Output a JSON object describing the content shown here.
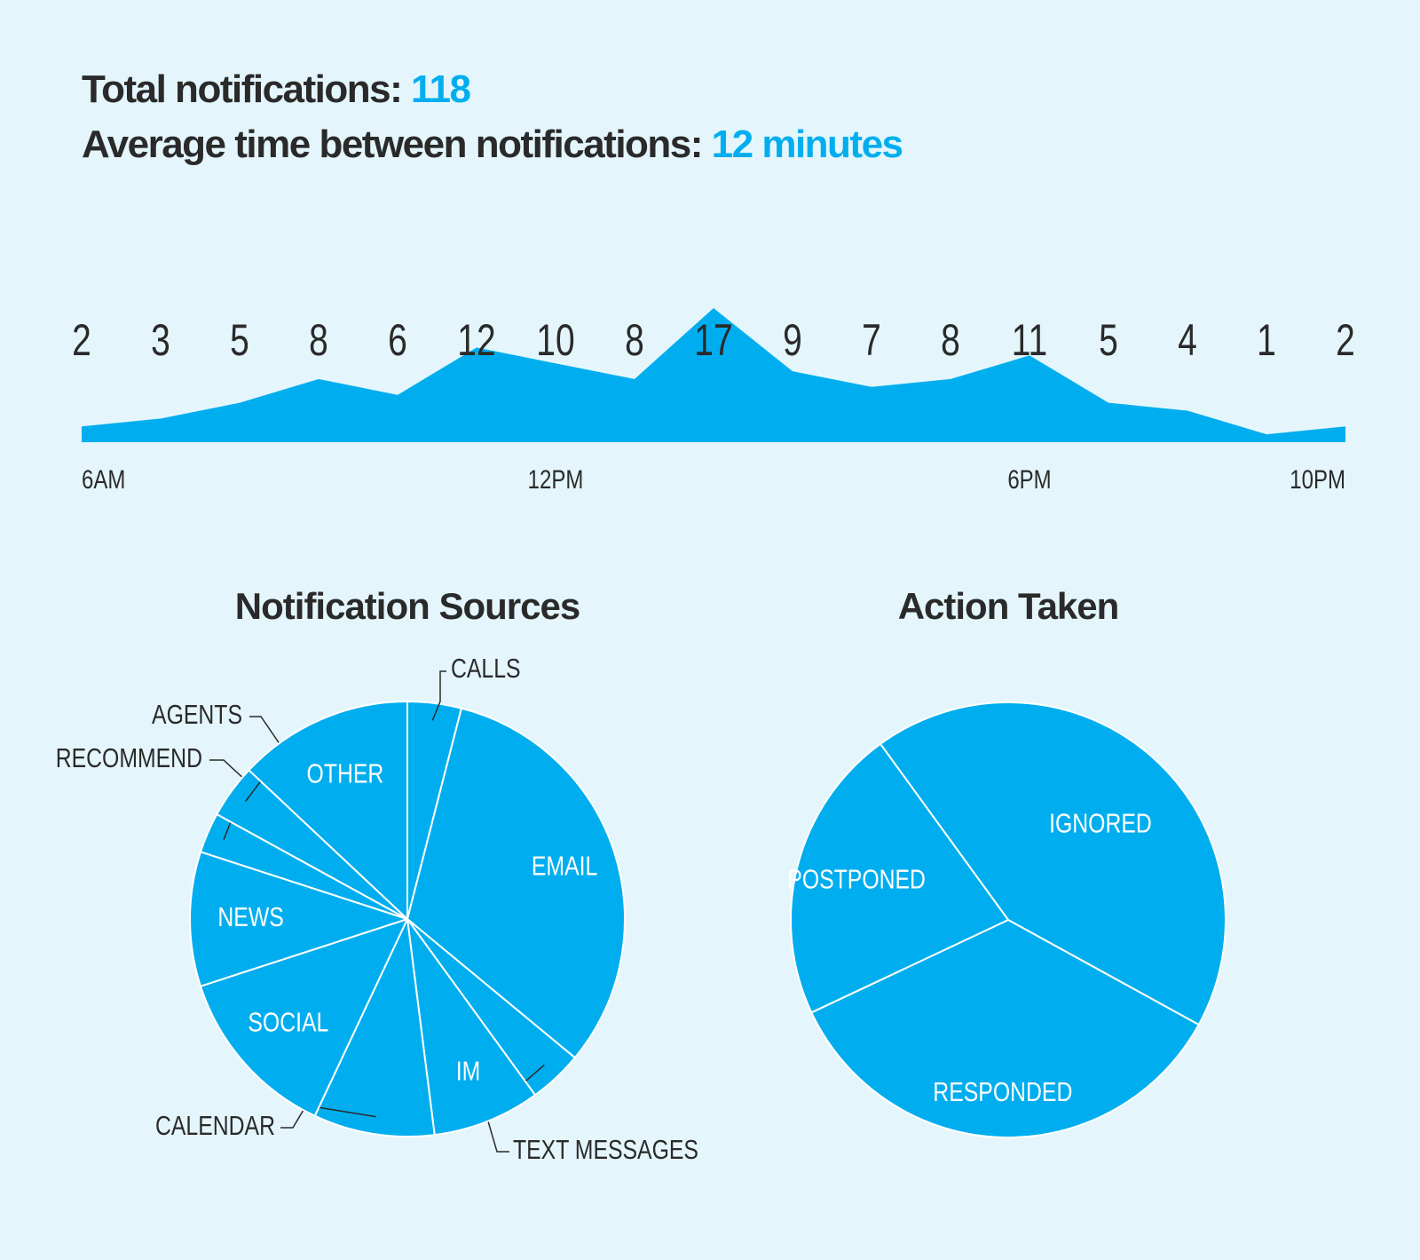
{
  "summary": {
    "total_label": "Total notifications:",
    "total_value": "118",
    "avg_label": "Average time between notifications:",
    "avg_value": "12 minutes"
  },
  "colors": {
    "background": "#e4f6fc",
    "accent": "#00aeef",
    "text": "#2a2a2a",
    "divider": "#ffffff"
  },
  "chart_data": [
    {
      "type": "area",
      "title": "",
      "x_tick_labels": [
        "6AM",
        "12PM",
        "6PM",
        "10PM"
      ],
      "values": [
        2,
        3,
        5,
        8,
        6,
        12,
        10,
        8,
        17,
        9,
        7,
        8,
        11,
        5,
        4,
        1,
        2
      ],
      "data_labels": [
        "2",
        "3",
        "5",
        "8",
        "6",
        "12",
        "10",
        "8",
        "17",
        "9",
        "7",
        "8",
        "11",
        "5",
        "4",
        "1",
        "2"
      ],
      "grid": false,
      "legend": "none"
    },
    {
      "type": "pie",
      "title": "Notification Sources",
      "slices": [
        {
          "label": "CALLS",
          "value": 4
        },
        {
          "label": "EMAIL",
          "value": 32
        },
        {
          "label": "TEXT MESSAGES",
          "value": 4
        },
        {
          "label": "IM",
          "value": 8
        },
        {
          "label": "CALENDAR",
          "value": 9
        },
        {
          "label": "SOCIAL",
          "value": 13
        },
        {
          "label": "NEWS",
          "value": 10
        },
        {
          "label": "RECOMMEND",
          "value": 3
        },
        {
          "label": "AGENTS",
          "value": 4
        },
        {
          "label": "OTHER",
          "value": 13
        }
      ],
      "legend": "none"
    },
    {
      "type": "pie",
      "title": "Action Taken",
      "slices": [
        {
          "label": "IGNORED",
          "value": 43
        },
        {
          "label": "RESPONDED",
          "value": 35
        },
        {
          "label": "POSTPONED",
          "value": 22
        }
      ],
      "legend": "none"
    }
  ]
}
